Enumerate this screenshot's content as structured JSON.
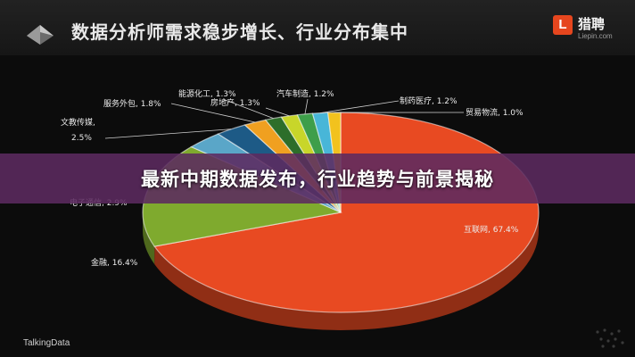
{
  "header": {
    "title": "数据分析师需求稳步增长、行业分布集中",
    "brand_badge": "L",
    "brand_name": "猎聘",
    "brand_sub": "Liepin.com"
  },
  "banner": {
    "headline": "最新中期数据发布，行业趋势与前景揭秘"
  },
  "footer": {
    "source": "TalkingData"
  },
  "chart_data": {
    "type": "pie",
    "title": "数据分析师需求稳步增长、行业分布集中",
    "slices": [
      {
        "name": "互联网",
        "value": 67.4,
        "label": "互联网, 67.4%",
        "color": "#e84a22"
      },
      {
        "name": "金融",
        "value": 16.4,
        "label": "金融, 16.4%",
        "color": "#7faa2e"
      },
      {
        "name": "电子通信",
        "value": 2.9,
        "label": "电子通信, 2.9%",
        "color": "#5aa6c8"
      },
      {
        "name": "文教传媒",
        "value": 2.5,
        "label": "文教传媒, 2.5%",
        "color": "#1d5a86"
      },
      {
        "name": "服务外包",
        "value": 1.8,
        "label": "服务外包, 1.8%",
        "color": "#f0a020"
      },
      {
        "name": "能源化工",
        "value": 1.3,
        "label": "能源化工, 1.3%",
        "color": "#2d6e2a"
      },
      {
        "name": "房地产",
        "value": 1.3,
        "label": "房地产, 1.3%",
        "color": "#c8d62a"
      },
      {
        "name": "汽车制造",
        "value": 1.2,
        "label": "汽车制造, 1.2%",
        "color": "#3e9e4a"
      },
      {
        "name": "制药医疗",
        "value": 1.2,
        "label": "制药医疗, 1.2%",
        "color": "#48b6d8"
      },
      {
        "name": "贸易物流",
        "value": 1.0,
        "label": "贸易物流, 1.0%",
        "color": "#f2c21e"
      }
    ]
  }
}
